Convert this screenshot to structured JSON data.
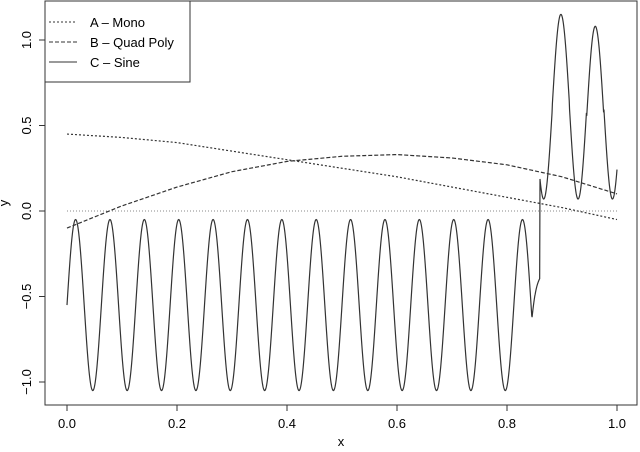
{
  "chart_data": {
    "type": "line",
    "title": "",
    "xlabel": "x",
    "ylabel": "y",
    "xlim": [
      0.0,
      1.0
    ],
    "ylim": [
      -1.1,
      1.2
    ],
    "x_ticks": [
      "0.0",
      "0.2",
      "0.4",
      "0.6",
      "0.8",
      "1.0"
    ],
    "y_ticks": [
      "-1.0",
      "-0.5",
      "0.0",
      "0.5",
      "1.0"
    ],
    "grid": false,
    "reference_line": {
      "y": 0.0,
      "style": "dotted",
      "color": "#888888"
    },
    "legend": {
      "position": "top-left",
      "entries": [
        {
          "label": "A – Mono",
          "style": "dotted"
        },
        {
          "label": "B – Quad Poly",
          "style": "dashed"
        },
        {
          "label": "C – Sine",
          "style": "solid"
        }
      ]
    },
    "series": [
      {
        "name": "A – Mono",
        "style": "dotted",
        "x": [
          0.0,
          0.1,
          0.2,
          0.3,
          0.4,
          0.5,
          0.6,
          0.7,
          0.8,
          0.9,
          1.0
        ],
        "values": [
          0.45,
          0.43,
          0.4,
          0.35,
          0.3,
          0.25,
          0.2,
          0.14,
          0.08,
          0.02,
          -0.05
        ]
      },
      {
        "name": "B – Quad Poly",
        "style": "dashed",
        "x": [
          0.0,
          0.1,
          0.2,
          0.3,
          0.4,
          0.5,
          0.6,
          0.7,
          0.8,
          0.9,
          1.0
        ],
        "values": [
          -0.1,
          0.03,
          0.14,
          0.23,
          0.29,
          0.32,
          0.33,
          0.31,
          0.27,
          0.2,
          0.1
        ]
      },
      {
        "name": "C – Sine",
        "style": "solid",
        "description": "Oscillation with ~16 cycles per unit; level shift near x=0.85",
        "segments": [
          {
            "x_start": 0.0,
            "x_end": 0.845,
            "mean": -0.55,
            "amplitude": 0.5,
            "cycles_per_unit": 16,
            "phase": 0.0
          },
          {
            "x_start": 0.845,
            "x_end": 1.0,
            "mean": 0.6,
            "amplitude": 0.53,
            "cycles_per_unit": 16,
            "phase": 0.0
          }
        ],
        "key_points": [
          {
            "x": 0.0,
            "y": -0.55
          },
          {
            "x": 0.016,
            "y": -0.05
          },
          {
            "x": 0.047,
            "y": -1.05
          },
          {
            "x": 0.797,
            "y": -1.05
          },
          {
            "x": 0.828,
            "y": -0.05
          },
          {
            "x": 0.85,
            "y": -0.64
          },
          {
            "x": 0.898,
            "y": 1.15
          },
          {
            "x": 0.928,
            "y": 0.05
          },
          {
            "x": 0.96,
            "y": 1.05
          },
          {
            "x": 0.99,
            "y": 0.05
          },
          {
            "x": 1.0,
            "y": 0.3
          }
        ]
      }
    ]
  }
}
